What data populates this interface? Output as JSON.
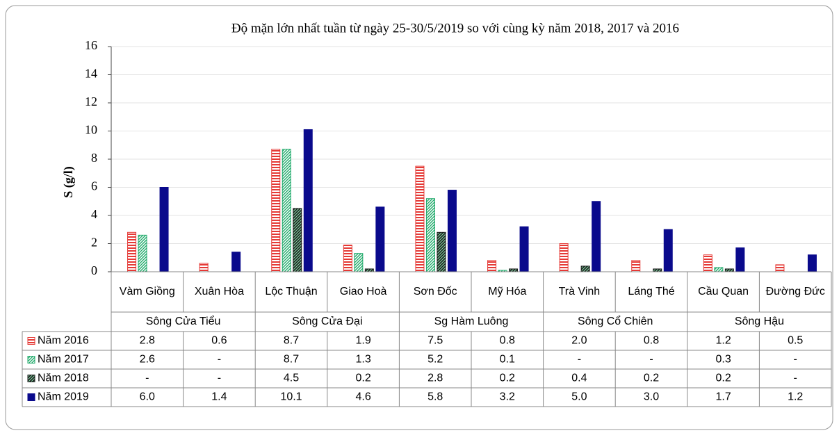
{
  "chart_data": {
    "type": "bar",
    "title": "Độ mặn lớn nhất tuần từ ngày 25-30/5/2019  so với cùng kỳ năm 2018, 2017 và  2016",
    "y_label": "S (g/l)",
    "categories": [
      "Vàm Giồng",
      "Xuân Hòa",
      "Lộc Thuận",
      "Giao Hoà",
      "Sơn Đốc",
      "Mỹ Hóa",
      "Trà Vinh",
      "Láng Thé",
      "Cầu Quan",
      "Đường Đức"
    ],
    "groups": [
      "Sông Cửa Tiểu",
      "Sông Cửa Đại",
      "Sg Hàm Luông",
      "Sông Cổ Chiên",
      "Sông Hậu"
    ],
    "series": [
      {
        "name": "Năm 2016",
        "color": "#e53935",
        "hatch": "horizontal",
        "values": [
          2.8,
          0.6,
          8.7,
          1.9,
          7.5,
          0.8,
          2.0,
          0.8,
          1.2,
          0.5
        ],
        "value_labels": [
          "2.8",
          "0.6",
          "8.7",
          "1.9",
          "7.5",
          "0.8",
          "2.0",
          "0.8",
          "1.2",
          "0.5"
        ]
      },
      {
        "name": "Năm 2017",
        "color": "#1faa6a",
        "hatch": "diagonal",
        "values": [
          2.6,
          null,
          8.7,
          1.3,
          5.2,
          0.1,
          null,
          null,
          0.3,
          null
        ],
        "value_labels": [
          "2.6",
          "-",
          "8.7",
          "1.3",
          "5.2",
          "0.1",
          "-",
          "-",
          "0.3",
          "-"
        ]
      },
      {
        "name": "Năm 2018",
        "color": "#1a1a1a",
        "hatch": "crosshatch",
        "values": [
          null,
          null,
          4.5,
          0.2,
          2.8,
          0.2,
          0.4,
          0.2,
          0.2,
          null
        ],
        "value_labels": [
          "-",
          "-",
          "4.5",
          "0.2",
          "2.8",
          "0.2",
          "0.4",
          "0.2",
          "0.2",
          "-"
        ]
      },
      {
        "name": "Năm 2019",
        "color": "#0a0a8c",
        "hatch": "solid",
        "values": [
          6.0,
          1.4,
          10.1,
          4.6,
          5.8,
          3.2,
          5.0,
          3.0,
          1.7,
          1.2
        ],
        "value_labels": [
          "6.0",
          "1.4",
          "10.1",
          "4.6",
          "5.8",
          "3.2",
          "5.0",
          "3.0",
          "1.7",
          "1.2"
        ]
      }
    ],
    "ylim": [
      0,
      16
    ],
    "yticks": [
      0,
      2,
      4,
      6,
      8,
      10,
      12,
      14,
      16
    ],
    "grid": true
  }
}
